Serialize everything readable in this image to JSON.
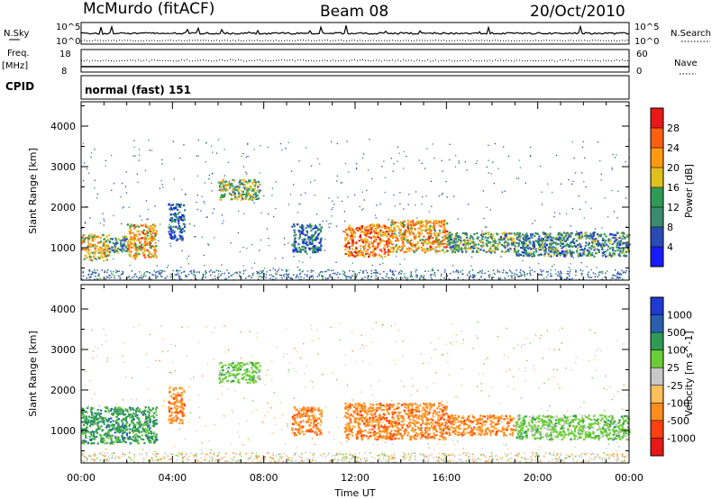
{
  "header": {
    "station": "McMurdo (fitACF)",
    "beam": "Beam 08",
    "date": "20/Oct/2010"
  },
  "summary_panel": {
    "left_label_top": "N.Sky",
    "left_ticks": [
      "10^5",
      "10^0"
    ],
    "right_label_top": "N.Search",
    "right_ticks": [
      "10^5",
      "10^0"
    ],
    "freq_label": "Freq.",
    "freq_unit": "[MHz]",
    "freq_ticks": [
      "18",
      "8"
    ],
    "nave_label": "Nave",
    "nave_ticks": [
      "60",
      "0"
    ],
    "cpid_label": "CPID",
    "cpid_text": "normal (fast) 151"
  },
  "colors": {
    "power_scale": [
      "#1a1aff",
      "#2a4bb5",
      "#3a8a70",
      "#2f9a55",
      "#e0c020",
      "#ff9a10",
      "#ff6010",
      "#e81818"
    ],
    "velocity_scale": [
      "#e81818",
      "#ff4010",
      "#ff8c1e",
      "#ffbf5a",
      "#c8c8c8",
      "#6acd35",
      "#2f9a55",
      "#2a5fb0",
      "#1f3ad0"
    ]
  },
  "chart_data": [
    {
      "type": "heatmap",
      "name": "power",
      "x_ticks": [
        "00:00",
        "04:00",
        "08:00",
        "12:00",
        "16:00",
        "20:00",
        "00:00"
      ],
      "xlabel": "",
      "ylabel": "Slant Range [km]",
      "y_ticks": [
        "1000",
        "2000",
        "3000",
        "4000"
      ],
      "ylim": [
        200,
        4600
      ],
      "colorbar_label": "Power [dB]",
      "colorbar_ticks": [
        "4",
        "8",
        "12",
        "16",
        "20",
        "24",
        "28"
      ],
      "clim": [
        0,
        30
      ],
      "regions": [
        {
          "x": [
            0.0,
            1.2
          ],
          "y": [
            700,
            1350
          ],
          "value": 18
        },
        {
          "x": [
            1.2,
            2.0
          ],
          "y": [
            900,
            1300
          ],
          "value": 10
        },
        {
          "x": [
            2.0,
            3.3
          ],
          "y": [
            750,
            1600
          ],
          "value": 20
        },
        {
          "x": [
            3.8,
            4.5
          ],
          "y": [
            1200,
            2100
          ],
          "value": 7
        },
        {
          "x": [
            6.0,
            7.8
          ],
          "y": [
            2200,
            2700
          ],
          "value": 14
        },
        {
          "x": [
            9.2,
            10.5
          ],
          "y": [
            900,
            1600
          ],
          "value": 8
        },
        {
          "x": [
            11.5,
            13.5
          ],
          "y": [
            800,
            1600
          ],
          "value": 22
        },
        {
          "x": [
            13.5,
            16.0
          ],
          "y": [
            900,
            1700
          ],
          "value": 20
        },
        {
          "x": [
            16.0,
            19.0
          ],
          "y": [
            900,
            1400
          ],
          "value": 12
        },
        {
          "x": [
            19.0,
            24.0
          ],
          "y": [
            800,
            1400
          ],
          "value": 10
        }
      ]
    },
    {
      "type": "heatmap",
      "name": "velocity",
      "x_ticks": [
        "00:00",
        "04:00",
        "08:00",
        "12:00",
        "16:00",
        "20:00",
        "00:00"
      ],
      "xlabel": "Time UT",
      "ylabel": "Slant Range [km]",
      "y_ticks": [
        "1000",
        "2000",
        "3000",
        "4000"
      ],
      "ylim": [
        200,
        4600
      ],
      "colorbar_label": "Velocity [m s^-1]",
      "colorbar_ticks": [
        "1000",
        "500",
        "100",
        "25",
        "-25",
        "-100",
        "-500",
        "-1000"
      ],
      "regions": [
        {
          "x": [
            0.0,
            3.3
          ],
          "y": [
            700,
            1600
          ],
          "value": 100
        },
        {
          "x": [
            3.8,
            4.5
          ],
          "y": [
            1200,
            2100
          ],
          "value": -100
        },
        {
          "x": [
            6.0,
            7.8
          ],
          "y": [
            2200,
            2700
          ],
          "value": 80
        },
        {
          "x": [
            9.2,
            10.5
          ],
          "y": [
            900,
            1600
          ],
          "value": -150
        },
        {
          "x": [
            11.5,
            16.0
          ],
          "y": [
            800,
            1700
          ],
          "value": -300
        },
        {
          "x": [
            16.0,
            19.0
          ],
          "y": [
            900,
            1400
          ],
          "value": -120
        },
        {
          "x": [
            19.0,
            24.0
          ],
          "y": [
            800,
            1400
          ],
          "value": 60
        }
      ]
    }
  ]
}
